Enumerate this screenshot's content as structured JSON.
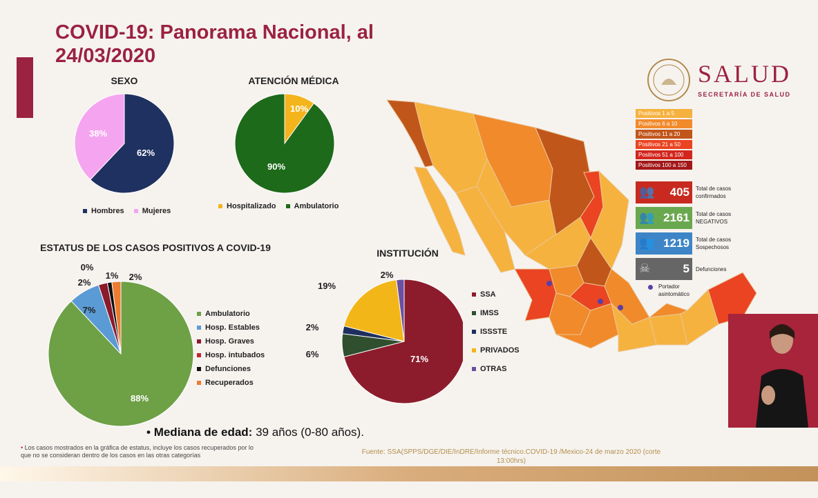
{
  "title_line1": "COVID-19: Panorama Nacional, al",
  "title_line2": "24/03/2020",
  "logo": {
    "word": "SALUD",
    "sub": "SECRETARÍA DE SALUD"
  },
  "chart_data": [
    {
      "type": "pie",
      "title": "SEXO",
      "categories": [
        "Hombres",
        "Mujeres"
      ],
      "values": [
        62,
        38
      ],
      "labels": [
        "62%",
        "38%"
      ],
      "colors": [
        "#1f3160",
        "#f5a5ef"
      ]
    },
    {
      "type": "pie",
      "title": "ATENCIÓN MÉDICA",
      "categories": [
        "Hospitalizado",
        "Ambulatorio"
      ],
      "values": [
        10,
        90
      ],
      "labels": [
        "10%",
        "90%"
      ],
      "colors": [
        "#f3b41c",
        "#1d6a1a"
      ]
    },
    {
      "type": "pie",
      "title": "ESTATUS DE LOS CASOS POSITIVOS A COVID-19",
      "categories": [
        "Ambulatorio",
        "Hosp. Estables",
        "Hosp. Graves",
        "Hosp. intubados",
        "Defunciones",
        "Recuperados"
      ],
      "values": [
        88,
        7,
        2,
        0,
        1,
        2
      ],
      "labels": [
        "88%",
        "7%",
        "2%",
        "0%",
        "1%",
        "2%"
      ],
      "colors": [
        "#6ea046",
        "#5b9bd5",
        "#8b1a2b",
        "#c0272d",
        "#111111",
        "#ee7b30"
      ]
    },
    {
      "type": "pie",
      "title": "INSTITUCIÓN",
      "categories": [
        "SSA",
        "IMSS",
        "ISSSTE",
        "PRIVADOS",
        "OTRAS"
      ],
      "values": [
        71,
        6,
        2,
        19,
        2
      ],
      "labels": [
        "71%",
        "6%",
        "2%",
        "19%",
        "2%"
      ],
      "colors": [
        "#8c1c2c",
        "#2f4f2f",
        "#1e2f5e",
        "#f2b619",
        "#6b4fa0"
      ]
    }
  ],
  "map": {
    "legend": [
      {
        "label": "Positivos 1 a 5",
        "color": "#f6b23e"
      },
      {
        "label": "Positivos 6 a 10",
        "color": "#f18a2b"
      },
      {
        "label": "Positivos 11 a 20",
        "color": "#c1561b"
      },
      {
        "label": "Positivos 21 a 50",
        "color": "#ea4422"
      },
      {
        "label": "Positivos 51 a 100",
        "color": "#d2261e"
      },
      {
        "label": "Positivos 100 a 150",
        "color": "#a31719"
      }
    ],
    "kpis": [
      {
        "value": "405",
        "label1": "Total de casos",
        "label2": "confirmados",
        "color": "#c82a20",
        "icon": "people-icon"
      },
      {
        "value": "2161",
        "label1": "Total de casos",
        "label2": "NEGATIVOS",
        "color": "#6aa84f",
        "icon": "people-icon"
      },
      {
        "value": "1219",
        "label1": "Total de casos",
        "label2": "Sospechosos",
        "color": "#3d85c6",
        "icon": "people-icon"
      },
      {
        "value": "5",
        "label1": "Defunciones",
        "label2": "",
        "color": "#666666",
        "icon": "skull-icon"
      }
    ],
    "carrier_label1": "Portador",
    "carrier_label2": "asintomático"
  },
  "median": {
    "label": "Mediana de edad:",
    "value": "39 años (0-80 años)."
  },
  "note": "Los casos mostrados en la gráfica de estatus, incluye los casos recuperados por lo que no se consideran dentro de los casos en las otras categorías",
  "source_line1": "Fuente: SSA(SPPS/DGE/DIE/InDRE/Informe técnico.COVID-19 /Mexico-24 de marzo 2020 (corte",
  "source_line2": "13:00hrs)"
}
